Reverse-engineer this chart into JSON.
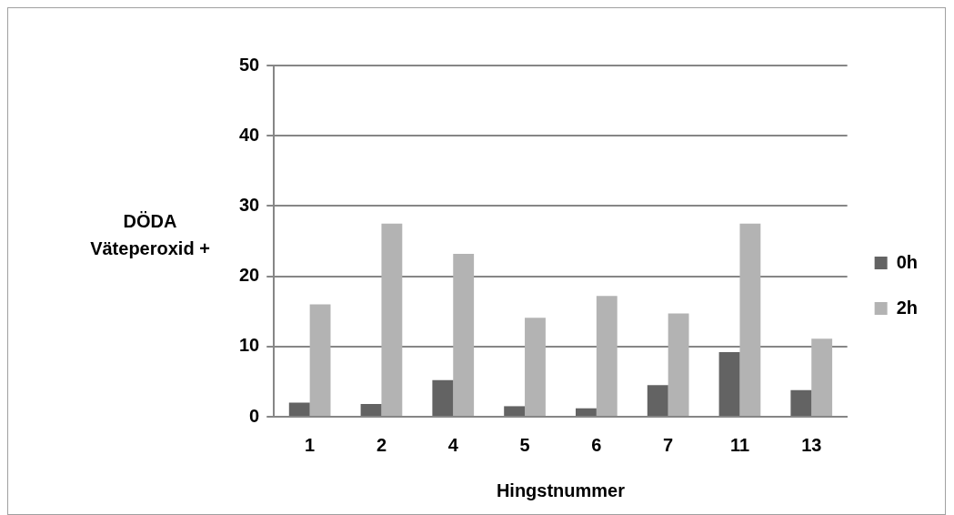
{
  "chart_data": {
    "type": "bar",
    "xlabel": "Hingstnummer",
    "ylabel": "DÖDA Väteperoxid +",
    "categories": [
      "1",
      "2",
      "4",
      "5",
      "6",
      "7",
      "11",
      "13"
    ],
    "series": [
      {
        "name": "0h",
        "color": "#636363",
        "values": [
          2.0,
          1.8,
          5.2,
          1.5,
          1.2,
          4.5,
          9.2,
          3.8
        ]
      },
      {
        "name": "2h",
        "color": "#b3b3b3",
        "values": [
          16.0,
          27.5,
          23.2,
          14.1,
          17.2,
          14.7,
          27.5,
          11.1
        ]
      }
    ],
    "ylim": [
      0,
      50
    ],
    "yticks": [
      0,
      10,
      20,
      30,
      40,
      50
    ],
    "grid": "y",
    "legend": "right"
  }
}
